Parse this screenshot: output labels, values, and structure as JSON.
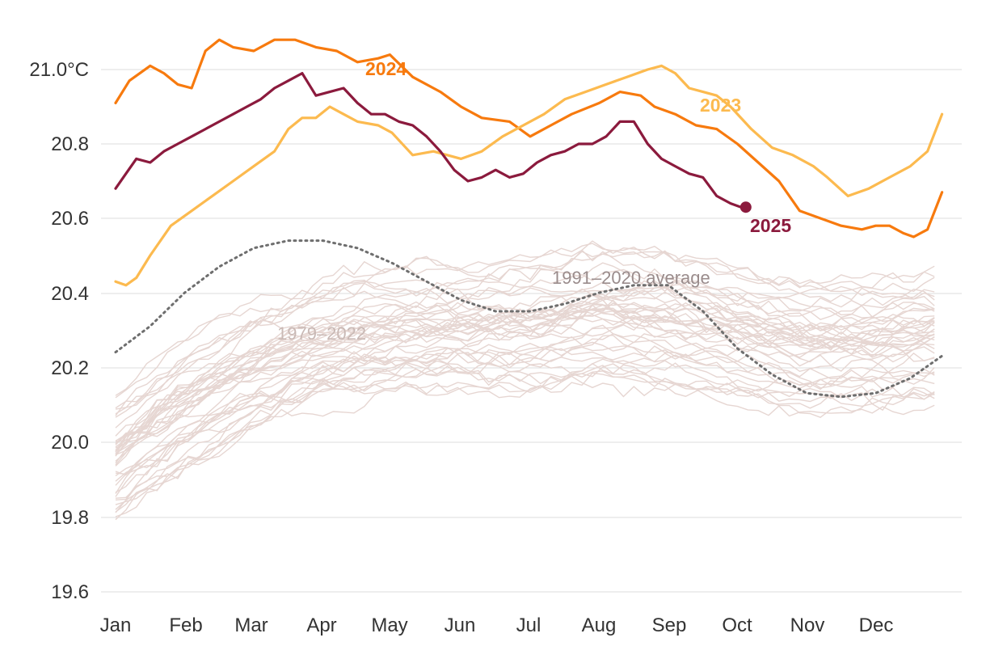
{
  "chart_data": {
    "type": "line",
    "title": "",
    "xlabel": "",
    "ylabel": "",
    "ylim": [
      19.6,
      21.05
    ],
    "y_ticks": [
      {
        "value": 21.0,
        "label": "21.0°C"
      },
      {
        "value": 20.8,
        "label": "20.8"
      },
      {
        "value": 20.6,
        "label": "20.6"
      },
      {
        "value": 20.4,
        "label": "20.4"
      },
      {
        "value": 20.2,
        "label": "20.2"
      },
      {
        "value": 20.0,
        "label": "20.0"
      },
      {
        "value": 19.8,
        "label": "19.8"
      },
      {
        "value": 19.6,
        "label": "19.6"
      }
    ],
    "months": [
      "Jan",
      "Feb",
      "Mar",
      "Apr",
      "May",
      "Jun",
      "Jul",
      "Aug",
      "Sep",
      "Oct",
      "Nov",
      "Dec"
    ],
    "series": [
      {
        "name": "2024",
        "color": "#f77a0e",
        "x": [
          0,
          0.2,
          0.5,
          0.7,
          0.9,
          1.1,
          1.3,
          1.5,
          1.7,
          2.0,
          2.3,
          2.6,
          2.9,
          3.2,
          3.5,
          3.8,
          3.97,
          4.3,
          4.7,
          5.0,
          5.3,
          5.7,
          6.0,
          6.3,
          6.6,
          7.0,
          7.3,
          7.6,
          7.8,
          8.1,
          8.4,
          8.7,
          9.0,
          9.3,
          9.6,
          9.9,
          10.2,
          10.5,
          10.8,
          11.0,
          11.2,
          11.4,
          11.55,
          11.75,
          11.96
        ],
        "values": [
          20.91,
          20.97,
          21.01,
          20.99,
          20.96,
          20.95,
          21.05,
          21.08,
          21.06,
          21.05,
          21.08,
          21.08,
          21.06,
          21.05,
          21.02,
          21.03,
          21.04,
          20.98,
          20.94,
          20.9,
          20.87,
          20.86,
          20.82,
          20.85,
          20.88,
          20.91,
          20.94,
          20.93,
          20.9,
          20.88,
          20.85,
          20.84,
          20.8,
          20.75,
          20.7,
          20.62,
          20.6,
          20.58,
          20.57,
          20.58,
          20.58,
          20.56,
          20.55,
          20.57,
          20.67
        ]
      },
      {
        "name": "2023",
        "color": "#fcba4f",
        "x": [
          0,
          0.15,
          0.3,
          0.5,
          0.8,
          1.1,
          1.4,
          1.7,
          2.0,
          2.3,
          2.5,
          2.7,
          2.9,
          3.1,
          3.3,
          3.5,
          3.8,
          4.0,
          4.3,
          4.6,
          5.0,
          5.3,
          5.6,
          5.9,
          6.2,
          6.5,
          6.8,
          7.1,
          7.4,
          7.7,
          7.9,
          8.1,
          8.3,
          8.5,
          8.7,
          8.9,
          9.2,
          9.5,
          9.8,
          10.1,
          10.3,
          10.6,
          10.9,
          11.2,
          11.5,
          11.75,
          11.96
        ],
        "values": [
          20.43,
          20.42,
          20.44,
          20.5,
          20.58,
          20.62,
          20.66,
          20.7,
          20.74,
          20.78,
          20.84,
          20.87,
          20.87,
          20.9,
          20.88,
          20.86,
          20.85,
          20.83,
          20.77,
          20.78,
          20.76,
          20.78,
          20.82,
          20.85,
          20.88,
          20.92,
          20.94,
          20.96,
          20.98,
          21.0,
          21.01,
          20.99,
          20.95,
          20.94,
          20.93,
          20.9,
          20.84,
          20.79,
          20.77,
          20.74,
          20.71,
          20.66,
          20.68,
          20.71,
          20.74,
          20.78,
          20.88
        ]
      },
      {
        "name": "2025",
        "color": "#8b1a3d",
        "x": [
          0,
          0.15,
          0.3,
          0.5,
          0.7,
          0.9,
          1.1,
          1.3,
          1.5,
          1.7,
          1.9,
          2.1,
          2.3,
          2.5,
          2.7,
          2.9,
          3.1,
          3.3,
          3.5,
          3.7,
          3.9,
          4.1,
          4.3,
          4.5,
          4.7,
          4.9,
          5.1,
          5.3,
          5.5,
          5.7,
          5.9,
          6.1,
          6.3,
          6.5,
          6.7,
          6.9,
          7.1,
          7.3,
          7.5,
          7.7,
          7.9,
          8.1,
          8.3,
          8.5,
          8.7,
          8.9,
          9.05,
          9.12
        ],
        "values": [
          20.68,
          20.72,
          20.76,
          20.75,
          20.78,
          20.8,
          20.82,
          20.84,
          20.86,
          20.88,
          20.9,
          20.92,
          20.95,
          20.97,
          20.99,
          20.93,
          20.94,
          20.95,
          20.91,
          20.88,
          20.88,
          20.86,
          20.85,
          20.82,
          20.78,
          20.73,
          20.7,
          20.71,
          20.73,
          20.71,
          20.72,
          20.75,
          20.77,
          20.78,
          20.8,
          20.8,
          20.82,
          20.86,
          20.86,
          20.8,
          20.76,
          20.74,
          20.72,
          20.71,
          20.66,
          20.64,
          20.63,
          20.63
        ]
      }
    ],
    "average": {
      "name": "1991–2020 average",
      "x": [
        0,
        0.5,
        1.0,
        1.5,
        2.0,
        2.5,
        3.0,
        3.5,
        4.0,
        4.5,
        5.0,
        5.5,
        6.0,
        6.5,
        7.0,
        7.5,
        8.0,
        8.5,
        9.0,
        9.5,
        10.0,
        10.5,
        11.0,
        11.5,
        11.96
      ],
      "values": [
        20.24,
        20.31,
        20.4,
        20.47,
        20.52,
        20.54,
        20.54,
        20.52,
        20.48,
        20.43,
        20.38,
        20.35,
        20.35,
        20.37,
        20.4,
        20.42,
        20.42,
        20.35,
        20.25,
        20.18,
        20.13,
        20.12,
        20.13,
        20.17,
        20.23
      ]
    },
    "historical": {
      "name": "1979–2022",
      "count": 44,
      "profile": [
        -0.36,
        -0.22,
        -0.12,
        -0.05,
        -0.02,
        -0.01,
        0,
        0.03,
        0.02,
        -0.02,
        -0.05,
        -0.04,
        -0.02
      ],
      "base_first": 20.28,
      "base_last": 20.34
    },
    "labels": {
      "label_2024": "2024",
      "label_2023": "2023",
      "label_2025": "2025",
      "average_label": "1991–2020 average",
      "historical_label": "1979–2022"
    },
    "colors": {
      "color_2024": "#f77a0e",
      "color_2023": "#fcba4f",
      "color_2025": "#8b1a3d",
      "historical": "#e6d6d2",
      "average": "#6e6e6e",
      "average_label": "#9a8c8c",
      "historical_label": "#c9b9b5"
    }
  }
}
